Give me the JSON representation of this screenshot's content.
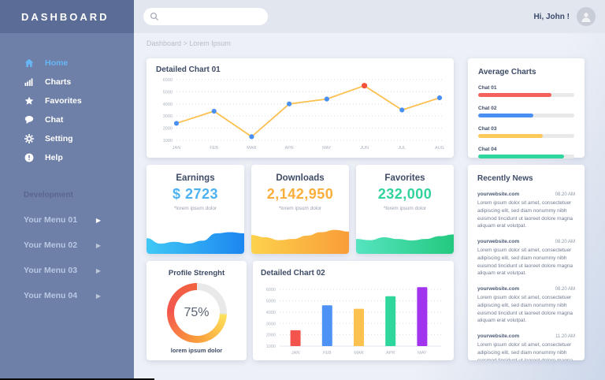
{
  "app": {
    "title": "DASHBOARD"
  },
  "topbar": {
    "search_placeholder": "",
    "greeting": "Hi, John !"
  },
  "breadcrumb": "Dashboard > Lorem Ipsum",
  "sidebar": {
    "nav": [
      {
        "label": "Home",
        "icon": "home-icon",
        "active": true
      },
      {
        "label": "Charts",
        "icon": "bar-chart-icon",
        "active": false
      },
      {
        "label": "Favorites",
        "icon": "star-icon",
        "active": false
      },
      {
        "label": "Chat",
        "icon": "chat-bubble-icon",
        "active": false
      },
      {
        "label": "Setting",
        "icon": "gear-icon",
        "active": false
      },
      {
        "label": "Help",
        "icon": "help-icon",
        "active": false
      }
    ],
    "section_label": "Development",
    "menus": [
      {
        "label": "Your Menu 01"
      },
      {
        "label": "Your Menu 02"
      },
      {
        "label": "Your Menu 03"
      },
      {
        "label": "Your Menu 04"
      }
    ]
  },
  "stats": [
    {
      "title": "Earnings",
      "value": "$ 2723",
      "caption": "*lorem ipsum dolor",
      "color": "#4cb2f1",
      "gradient": [
        "#40c8f5",
        "#1c86f0"
      ],
      "spark": [
        55,
        36,
        42,
        36,
        46,
        72,
        76,
        72
      ]
    },
    {
      "title": "Downloads",
      "value": "2,142,950",
      "caption": "*lorem ipsum dolor",
      "color": "#fbae3c",
      "gradient": [
        "#fcd24d",
        "#f99d38"
      ],
      "spark": [
        66,
        58,
        48,
        52,
        64,
        76,
        84,
        78
      ]
    },
    {
      "title": "Favorites",
      "value": "232,000",
      "caption": "*lorem ipsum dolor",
      "color": "#2fd39b",
      "gradient": [
        "#56e4c0",
        "#23c97f"
      ],
      "spark": [
        52,
        48,
        58,
        52,
        47,
        52,
        62,
        68
      ]
    }
  ],
  "news": {
    "title": "Recently News",
    "items": [
      {
        "site": "yourwebsite.com",
        "time": "08.20 AM",
        "body": "Lorem ipsum dolor sit amet, consectetuer adipiscing elit, sed diam nonummy nibh euismod tincidunt ut laoreet dolore magna aliquam erat volutpat."
      },
      {
        "site": "yourwebsite.com",
        "time": "08.20 AM",
        "body": "Lorem ipsum dolor sit amet, consectetuer adipiscing elit, sed diam nonummy nibh euismod tincidunt ut laoreet dolore magna aliquam erat volutpat."
      },
      {
        "site": "yourwebsite.com",
        "time": "08.20 AM",
        "body": "Lorem ipsum dolor sit amet, consectetuer adipiscing elit, sed diam nonummy nibh euismod tincidunt ut laoreet dolore magna aliquam erat volutpat."
      },
      {
        "site": "yourwebsite.com",
        "time": "11.20 AM",
        "body": "Lorem ipsum dolor sit amet, consectetuer adipiscing elit, sed diam nonummy nibh euismod tincidunt ut laoreet dolore magna aliquam erat volutpat."
      }
    ]
  },
  "chart_data": [
    {
      "id": "chart01",
      "type": "line",
      "title": "Detailed Chart 01",
      "categories": [
        "JAN",
        "FEB",
        "MAR",
        "APR",
        "MAY",
        "JUN",
        "JUL",
        "AUG"
      ],
      "values": [
        2400,
        3400,
        1300,
        4000,
        4400,
        5500,
        3500,
        4500
      ],
      "line_color": "#fcc050",
      "point_color": "#4a90f2",
      "highlight_point": {
        "index": 5,
        "color": "#f4513d"
      },
      "ylim": [
        1000,
        6000
      ],
      "yticks": [
        1000,
        2000,
        3000,
        4000,
        5000,
        6000
      ],
      "grid": "dotted",
      "legend": "none"
    },
    {
      "id": "chart02",
      "type": "bar",
      "title": "Detailed Chart 02",
      "categories": [
        "JAN",
        "FEB",
        "MAR",
        "APR",
        "MAY"
      ],
      "values": [
        2400,
        4600,
        4300,
        5400,
        6200
      ],
      "bar_colors": [
        "#f4544e",
        "#4e92f5",
        "#fcc14e",
        "#2fd79c",
        "#a233ef"
      ],
      "ylim": [
        1000,
        6500
      ],
      "yticks": [
        1000,
        2000,
        3000,
        4000,
        5000,
        6000
      ],
      "grid": "dotted",
      "legend": "none"
    },
    {
      "id": "average",
      "type": "hbar",
      "title": "Average Charts",
      "bars": [
        {
          "label": "Chat 01",
          "percent": 76,
          "color": "#f4615a"
        },
        {
          "label": "Chat 02",
          "percent": 57,
          "color": "#4a90f2"
        },
        {
          "label": "Chat 03",
          "percent": 67,
          "color": "#fcc95b"
        },
        {
          "label": "Chat 04",
          "percent": 89,
          "color": "#2fd79c"
        }
      ],
      "track_color": "#e9e9e9"
    },
    {
      "id": "profile",
      "type": "donut",
      "title": "Profile Strenght",
      "percent": 75,
      "label": "75%",
      "caption": "lorem ipsum dolor",
      "segment_colors": [
        "#fde05a",
        "#fa9d3b",
        "#f4564e",
        "#f0633f"
      ],
      "track_color": "#e9e9e9"
    }
  ]
}
